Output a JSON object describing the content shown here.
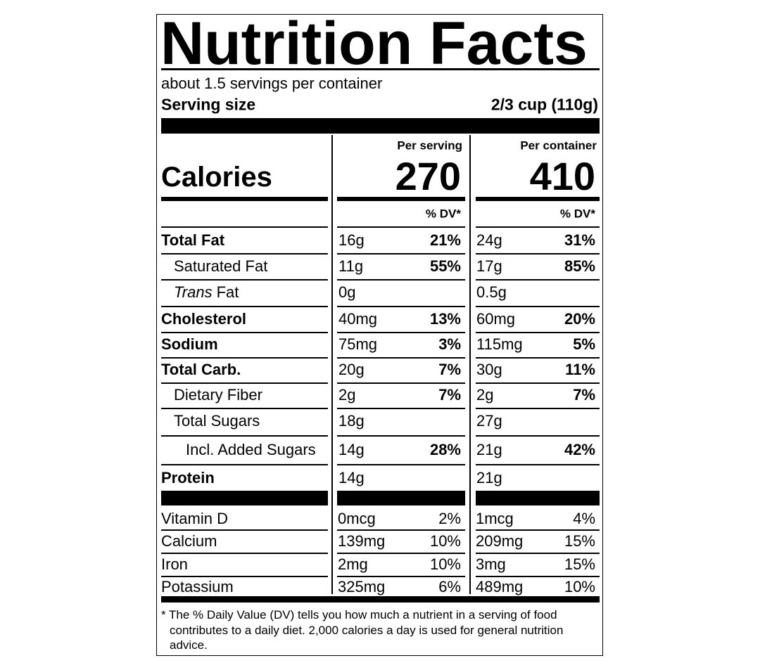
{
  "title": "Nutrition Facts",
  "servings": "about 1.5 servings per container",
  "serving_size": {
    "label": "Serving size",
    "value": "2/3 cup (110g)"
  },
  "calories": {
    "label": "Calories"
  },
  "columns": [
    {
      "header": "Per serving",
      "calories": "270",
      "dv_header": "% DV*"
    },
    {
      "header": "Per container",
      "calories": "410",
      "dv_header": "% DV*"
    }
  ],
  "nutrients": [
    {
      "name": "Total Fat",
      "values": [
        {
          "amount": "16g",
          "dv": "21%"
        },
        {
          "amount": "24g",
          "dv": "31%"
        }
      ]
    },
    {
      "name": "Saturated Fat",
      "values": [
        {
          "amount": "11g",
          "dv": "55%"
        },
        {
          "amount": "17g",
          "dv": "85%"
        }
      ]
    },
    {
      "name_italic": "Trans",
      "name": "Fat",
      "values": [
        {
          "amount": "0g"
        },
        {
          "amount": "0.5g"
        }
      ]
    },
    {
      "name": "Cholesterol",
      "values": [
        {
          "amount": "40mg",
          "dv": "13%"
        },
        {
          "amount": "60mg",
          "dv": "20%"
        }
      ]
    },
    {
      "name": "Sodium",
      "values": [
        {
          "amount": "75mg",
          "dv": "3%"
        },
        {
          "amount": "115mg",
          "dv": "5%"
        }
      ]
    },
    {
      "name": "Total Carb.",
      "values": [
        {
          "amount": "20g",
          "dv": "7%"
        },
        {
          "amount": "30g",
          "dv": "11%"
        }
      ]
    },
    {
      "name": "Dietary Fiber",
      "values": [
        {
          "amount": "2g",
          "dv": "7%"
        },
        {
          "amount": "2g",
          "dv": "7%"
        }
      ]
    },
    {
      "name": "Total Sugars",
      "values": [
        {
          "amount": "18g"
        },
        {
          "amount": "27g"
        }
      ]
    },
    {
      "name": "Incl. Added Sugars",
      "values": [
        {
          "amount": "14g",
          "dv": "28%"
        },
        {
          "amount": "21g",
          "dv": "42%"
        }
      ]
    },
    {
      "name": "Protein",
      "values": [
        {
          "amount": "14g"
        },
        {
          "amount": "21g"
        }
      ]
    }
  ],
  "vitamins": [
    {
      "name": "Vitamin D",
      "values": [
        {
          "amount": "0mcg",
          "dv": "2%"
        },
        {
          "amount": "1mcg",
          "dv": "4%"
        }
      ]
    },
    {
      "name": "Calcium",
      "values": [
        {
          "amount": "139mg",
          "dv": "10%"
        },
        {
          "amount": "209mg",
          "dv": "15%"
        }
      ]
    },
    {
      "name": "Iron",
      "values": [
        {
          "amount": "2mg",
          "dv": "10%"
        },
        {
          "amount": "3mg",
          "dv": "15%"
        }
      ]
    },
    {
      "name": "Potassium",
      "values": [
        {
          "amount": "325mg",
          "dv": "6%"
        },
        {
          "amount": "489mg",
          "dv": "10%"
        }
      ]
    }
  ],
  "footnote": "* The % Daily Value (DV) tells you how much a nutrient in a serving of food contributes to a daily diet. 2,000 calories a day is used for general nutrition advice."
}
